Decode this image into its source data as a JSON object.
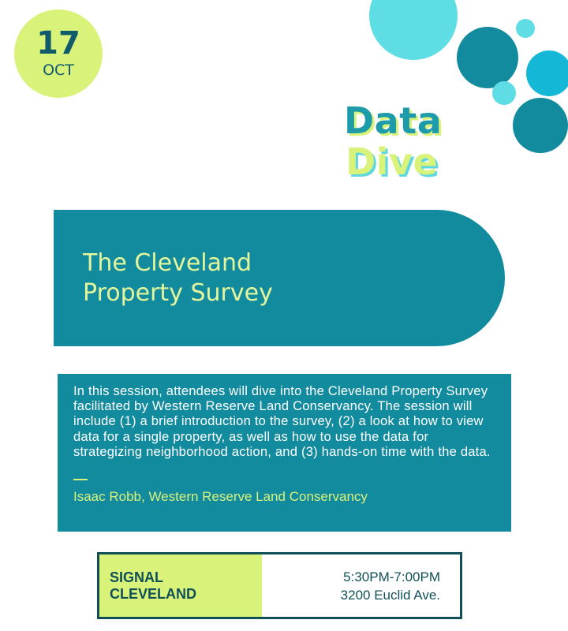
{
  "date": {
    "day": "17",
    "month": "OCT"
  },
  "title": {
    "line1": "Data",
    "line2": "Dive"
  },
  "session": {
    "title": "The Cleveland\nProperty Survey"
  },
  "description": {
    "text": "In this session, attendees will dive into the Cleveland Property Survey facilitated by Western Reserve Land Conservancy. The session will include (1) a brief introduction to the survey, (2) a look at how to view data for a single property, as well as how to use the data for strategizing neighborhood action, and (3) hands-on time with the data.",
    "speaker": "Isaac Robb, Western Reserve Land Conservancy"
  },
  "venue": {
    "line1": "SIGNAL",
    "line2": "CLEVELAND"
  },
  "event": {
    "time": "5:30PM-7:00PM",
    "address": "3200 Euclid Ave."
  },
  "colors": {
    "teal": "#128b9f",
    "lime": "#d8f27a",
    "dark_teal": "#0f4f55",
    "light_cyan": "#5fd7df"
  }
}
